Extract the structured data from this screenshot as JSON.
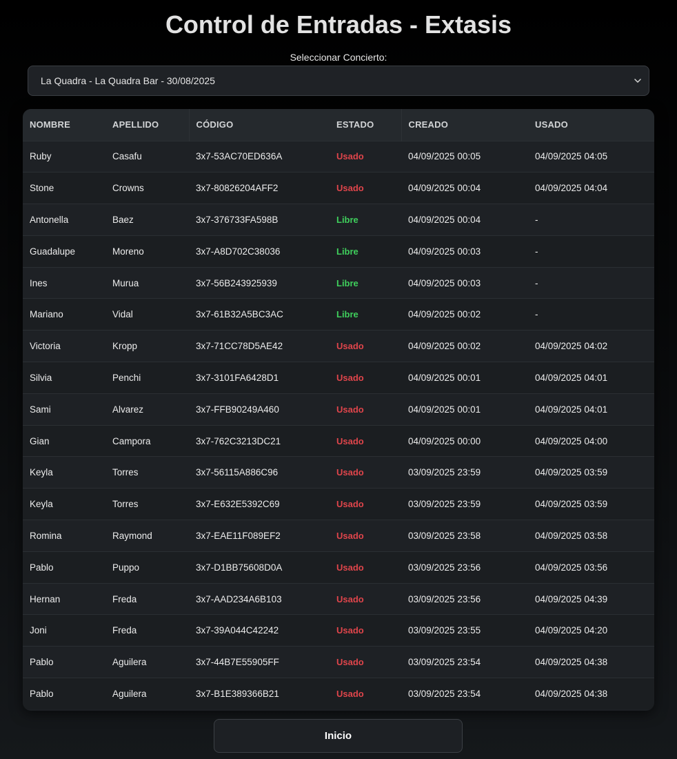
{
  "page": {
    "title": "Control de Entradas - Extasis"
  },
  "concert_select": {
    "label": "Seleccionar Concierto:",
    "selected": "La Quadra - La Quadra Bar - 30/08/2025",
    "icon": "chevron-down-icon"
  },
  "table": {
    "headers": [
      "NOMBRE",
      "APELLIDO",
      "CÓDIGO",
      "ESTADO",
      "CREADO",
      "USADO"
    ],
    "rows": [
      {
        "nombre": "Ruby",
        "apellido": "Casafu",
        "codigo": "3x7-53AC70ED636A",
        "estado": "Usado",
        "creado": "04/09/2025 00:05",
        "usado": "04/09/2025 04:05"
      },
      {
        "nombre": "Stone",
        "apellido": "Crowns",
        "codigo": "3x7-80826204AFF2",
        "estado": "Usado",
        "creado": "04/09/2025 00:04",
        "usado": "04/09/2025 04:04"
      },
      {
        "nombre": "Antonella",
        "apellido": "Baez",
        "codigo": "3x7-376733FA598B",
        "estado": "Libre",
        "creado": "04/09/2025 00:04",
        "usado": "-"
      },
      {
        "nombre": "Guadalupe",
        "apellido": "Moreno",
        "codigo": "3x7-A8D702C38036",
        "estado": "Libre",
        "creado": "04/09/2025 00:03",
        "usado": "-"
      },
      {
        "nombre": "Ines",
        "apellido": "Murua",
        "codigo": "3x7-56B243925939",
        "estado": "Libre",
        "creado": "04/09/2025 00:03",
        "usado": "-"
      },
      {
        "nombre": "Mariano",
        "apellido": "Vidal",
        "codigo": "3x7-61B32A5BC3AC",
        "estado": "Libre",
        "creado": "04/09/2025 00:02",
        "usado": "-"
      },
      {
        "nombre": "Victoria",
        "apellido": "Kropp",
        "codigo": "3x7-71CC78D5AE42",
        "estado": "Usado",
        "creado": "04/09/2025 00:02",
        "usado": "04/09/2025 04:02"
      },
      {
        "nombre": "Silvia",
        "apellido": "Penchi",
        "codigo": "3x7-3101FA6428D1",
        "estado": "Usado",
        "creado": "04/09/2025 00:01",
        "usado": "04/09/2025 04:01"
      },
      {
        "nombre": "Sami",
        "apellido": "Alvarez",
        "codigo": "3x7-FFB90249A460",
        "estado": "Usado",
        "creado": "04/09/2025 00:01",
        "usado": "04/09/2025 04:01"
      },
      {
        "nombre": "Gian",
        "apellido": "Campora",
        "codigo": "3x7-762C3213DC21",
        "estado": "Usado",
        "creado": "04/09/2025 00:00",
        "usado": "04/09/2025 04:00"
      },
      {
        "nombre": "Keyla",
        "apellido": "Torres",
        "codigo": "3x7-56115A886C96",
        "estado": "Usado",
        "creado": "03/09/2025 23:59",
        "usado": "04/09/2025 03:59"
      },
      {
        "nombre": "Keyla",
        "apellido": "Torres",
        "codigo": "3x7-E632E5392C69",
        "estado": "Usado",
        "creado": "03/09/2025 23:59",
        "usado": "04/09/2025 03:59"
      },
      {
        "nombre": "Romina",
        "apellido": "Raymond",
        "codigo": "3x7-EAE11F089EF2",
        "estado": "Usado",
        "creado": "03/09/2025 23:58",
        "usado": "04/09/2025 03:58"
      },
      {
        "nombre": "Pablo",
        "apellido": "Puppo",
        "codigo": "3x7-D1BB75608D0A",
        "estado": "Usado",
        "creado": "03/09/2025 23:56",
        "usado": "04/09/2025 03:56"
      },
      {
        "nombre": "Hernan",
        "apellido": "Freda",
        "codigo": "3x7-AAD234A6B103",
        "estado": "Usado",
        "creado": "03/09/2025 23:56",
        "usado": "04/09/2025 04:39"
      },
      {
        "nombre": "Joni",
        "apellido": "Freda",
        "codigo": "3x7-39A044C42242",
        "estado": "Usado",
        "creado": "03/09/2025 23:55",
        "usado": "04/09/2025 04:20"
      },
      {
        "nombre": "Pablo",
        "apellido": "Aguilera",
        "codigo": "3x7-44B7E55905FF",
        "estado": "Usado",
        "creado": "03/09/2025 23:54",
        "usado": "04/09/2025 04:38"
      },
      {
        "nombre": "Pablo",
        "apellido": "Aguilera",
        "codigo": "3x7-B1E389366B21",
        "estado": "Usado",
        "creado": "03/09/2025 23:54",
        "usado": "04/09/2025 04:38"
      }
    ]
  },
  "status_colors": {
    "Usado": "#e0454b",
    "Libre": "#3fcf5c"
  },
  "footer": {
    "home_button_label": "Inicio"
  }
}
